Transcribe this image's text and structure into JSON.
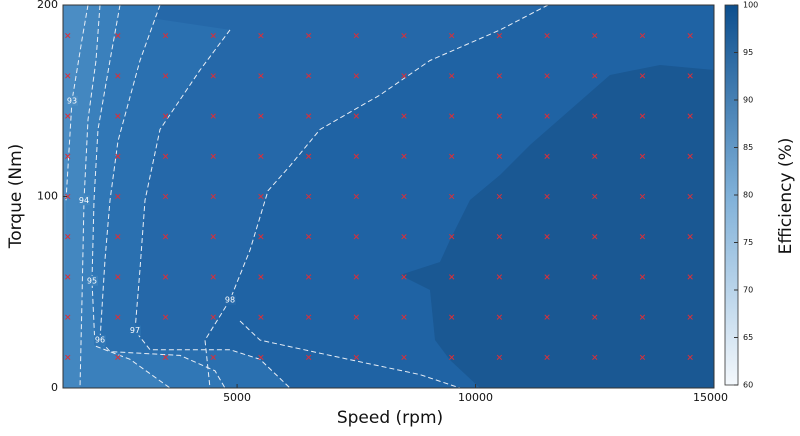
{
  "chart_data": {
    "type": "contour",
    "x_label": "Speed (rpm)",
    "y_label": "Torque (Nm)",
    "colorbar_label": "Efficiency (%)",
    "xlim": [
      1350,
      15000
    ],
    "xticks": [
      5000,
      10000,
      15000
    ],
    "ylim": [
      0,
      200
    ],
    "yticks": [
      0,
      100,
      200
    ],
    "clim": [
      60,
      100
    ],
    "cticks": [
      60,
      65,
      70,
      75,
      80,
      85,
      90,
      95,
      100
    ],
    "contours": [
      {
        "level": 93,
        "color": "#4b8dc4",
        "x": [
          1874,
          1748,
          1539,
          1413
        ],
        "y": [
          200,
          182,
          150,
          98
        ]
      },
      {
        "level": 94,
        "color": "#4387c0",
        "x": [
          2126,
          2042,
          1874,
          1790,
          1748,
          1706
        ],
        "y": [
          200,
          171,
          140,
          98,
          46,
          0
        ]
      },
      {
        "level": 95,
        "color": "#3a80bc",
        "x": [
          2545,
          2336,
          2084,
          2000,
          1958,
          2021,
          2755,
          3594
        ],
        "y": [
          200,
          171,
          135,
          98,
          56,
          22,
          15,
          0
        ]
      },
      {
        "level": 96,
        "color": "#3077b6",
        "x": [
          3384,
          2965,
          2504,
          2336,
          2231,
          2126,
          2336,
          3804,
          4537,
          4747
        ],
        "y": [
          200,
          171,
          129,
          98,
          67,
          25,
          19,
          17,
          9,
          0
        ]
      },
      {
        "level": 97,
        "color": "#2a70b0",
        "x": [
          4852,
          4223,
          3384,
          3069,
          2965,
          2860,
          3174,
          4852,
          5481,
          6110
        ],
        "y": [
          187,
          166,
          135,
          98,
          62,
          30,
          20,
          20,
          15,
          0
        ]
      },
      {
        "level": 98,
        "color": "#2568a9",
        "x": [
          11520,
          10514,
          9046,
          7997,
          6739,
          6110,
          5649,
          5271,
          4852,
          4328,
          4433,
          null,
          5062,
          5481,
          6949,
          8836,
          9675
        ],
        "y": [
          200,
          187,
          171,
          153,
          135,
          116,
          103,
          72,
          46,
          25,
          0,
          null,
          35,
          25,
          17,
          7,
          0
        ]
      }
    ],
    "markers": {
      "color": "#d9303a",
      "x": [
        1450,
        2500,
        3500,
        4500,
        5500,
        6500,
        7500,
        8500,
        9500,
        10500,
        11500,
        12500,
        13500,
        14500
      ],
      "y": [
        16,
        37,
        58,
        79,
        100,
        121,
        142,
        163,
        184
      ]
    }
  }
}
